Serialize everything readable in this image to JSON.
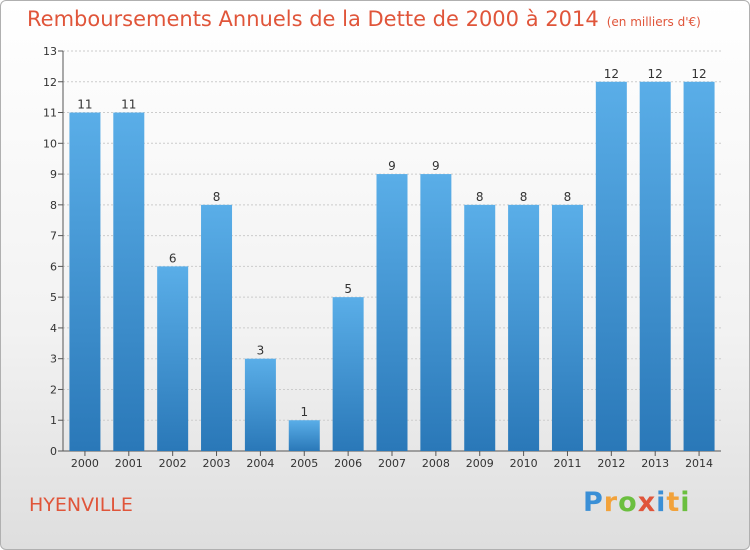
{
  "header": {
    "title": "Remboursements Annuels de la Dette de 2000 à 2014",
    "unit": "(en milliers d'€)"
  },
  "footer": {
    "city": "HYENVILLE",
    "logo": "Proxiti"
  },
  "colors": {
    "title": "#e0553a",
    "bar_light": "#5aaee8",
    "bar_dark": "#2a78b8",
    "grid": "#cccccc"
  },
  "chart_data": {
    "type": "bar",
    "title": "Remboursements Annuels de la Dette de 2000 à 2014",
    "xlabel": "",
    "ylabel": "",
    "categories": [
      "2000",
      "2001",
      "2002",
      "2003",
      "2004",
      "2005",
      "2006",
      "2007",
      "2008",
      "2009",
      "2010",
      "2011",
      "2012",
      "2013",
      "2014"
    ],
    "values": [
      11,
      11,
      6,
      8,
      3,
      1,
      5,
      9,
      9,
      8,
      8,
      8,
      12,
      12,
      12
    ],
    "data_labels": [
      "11",
      "11",
      "6",
      "8",
      "3",
      "1",
      "5",
      "9",
      "9",
      "8",
      "8",
      "8",
      "12",
      "12",
      "12"
    ],
    "ylim": [
      0,
      13
    ],
    "yticks": [
      0,
      1,
      2,
      3,
      4,
      5,
      6,
      7,
      8,
      9,
      10,
      11,
      12,
      13
    ],
    "grid": true
  }
}
